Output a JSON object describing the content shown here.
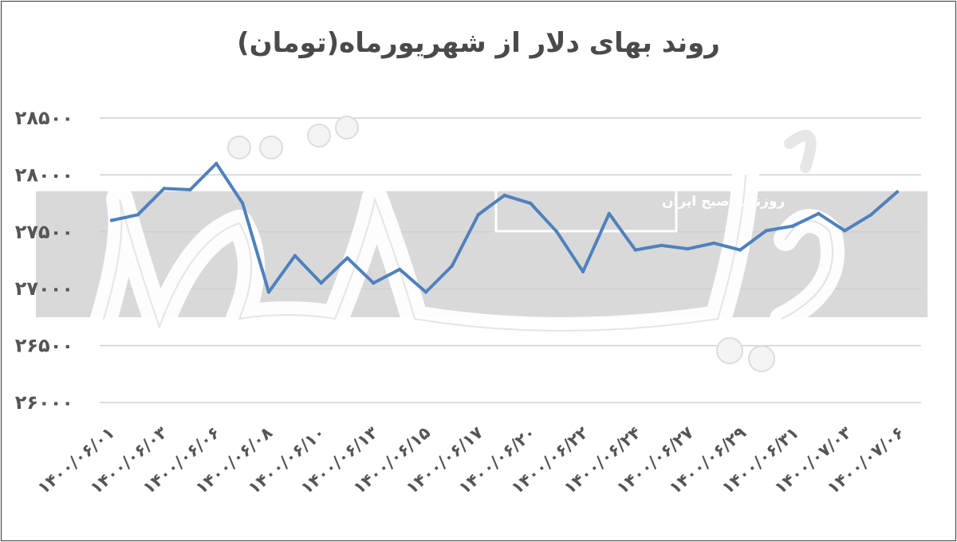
{
  "chart_data": {
    "type": "line",
    "title": "روند بهای دلار از شهریورماه(تومان)",
    "xlabel": "",
    "ylabel": "",
    "ylim": [
      26000,
      28500
    ],
    "yticks": [
      "۲۶۰۰۰",
      "۲۶۵۰۰",
      "۲۷۰۰۰",
      "۲۷۵۰۰",
      "۲۸۰۰۰",
      "۲۸۵۰۰"
    ],
    "ytick_values": [
      26000,
      26500,
      27000,
      27500,
      28000,
      28500
    ],
    "grid": true,
    "legend": "none",
    "x_tick_labels": [
      "۱۴۰۰/۰۶/۰۱",
      "۱۴۰۰/۰۶/۰۳",
      "۱۴۰۰/۰۶/۰۶",
      "۱۴۰۰/۰۶/۰۸",
      "۱۴۰۰/۰۶/۱۰",
      "۱۴۰۰/۰۶/۱۳",
      "۱۴۰۰/۰۶/۱۵",
      "۱۴۰۰/۰۶/۱۷",
      "۱۴۰۰/۰۶/۲۰",
      "۱۴۰۰/۰۶/۲۲",
      "۱۴۰۰/۰۶/۲۴",
      "۱۴۰۰/۰۶/۲۷",
      "۱۴۰۰/۰۶/۲۹",
      "۱۴۰۰/۰۶/۳۱",
      "۱۴۰۰/۰۷/۰۳",
      "۱۴۰۰/۰۷/۰۶"
    ],
    "series": [
      {
        "color": "#4f81bd",
        "values": [
          27600,
          27650,
          27880,
          27870,
          28100,
          27750,
          26970,
          27290,
          27050,
          27270,
          27050,
          27170,
          26970,
          27200,
          27650,
          27820,
          27750,
          27500,
          27150,
          27660,
          27340,
          27380,
          27350,
          27400,
          27340,
          27510,
          27550,
          27660,
          27510,
          27650,
          27850
        ]
      }
    ]
  },
  "watermark": {
    "text": "روزنامه صبح ایران"
  },
  "colors": {
    "line": "#4f81bd",
    "band": "#d9d9d9",
    "grid": "#d0d0d0",
    "text": "#555555"
  }
}
